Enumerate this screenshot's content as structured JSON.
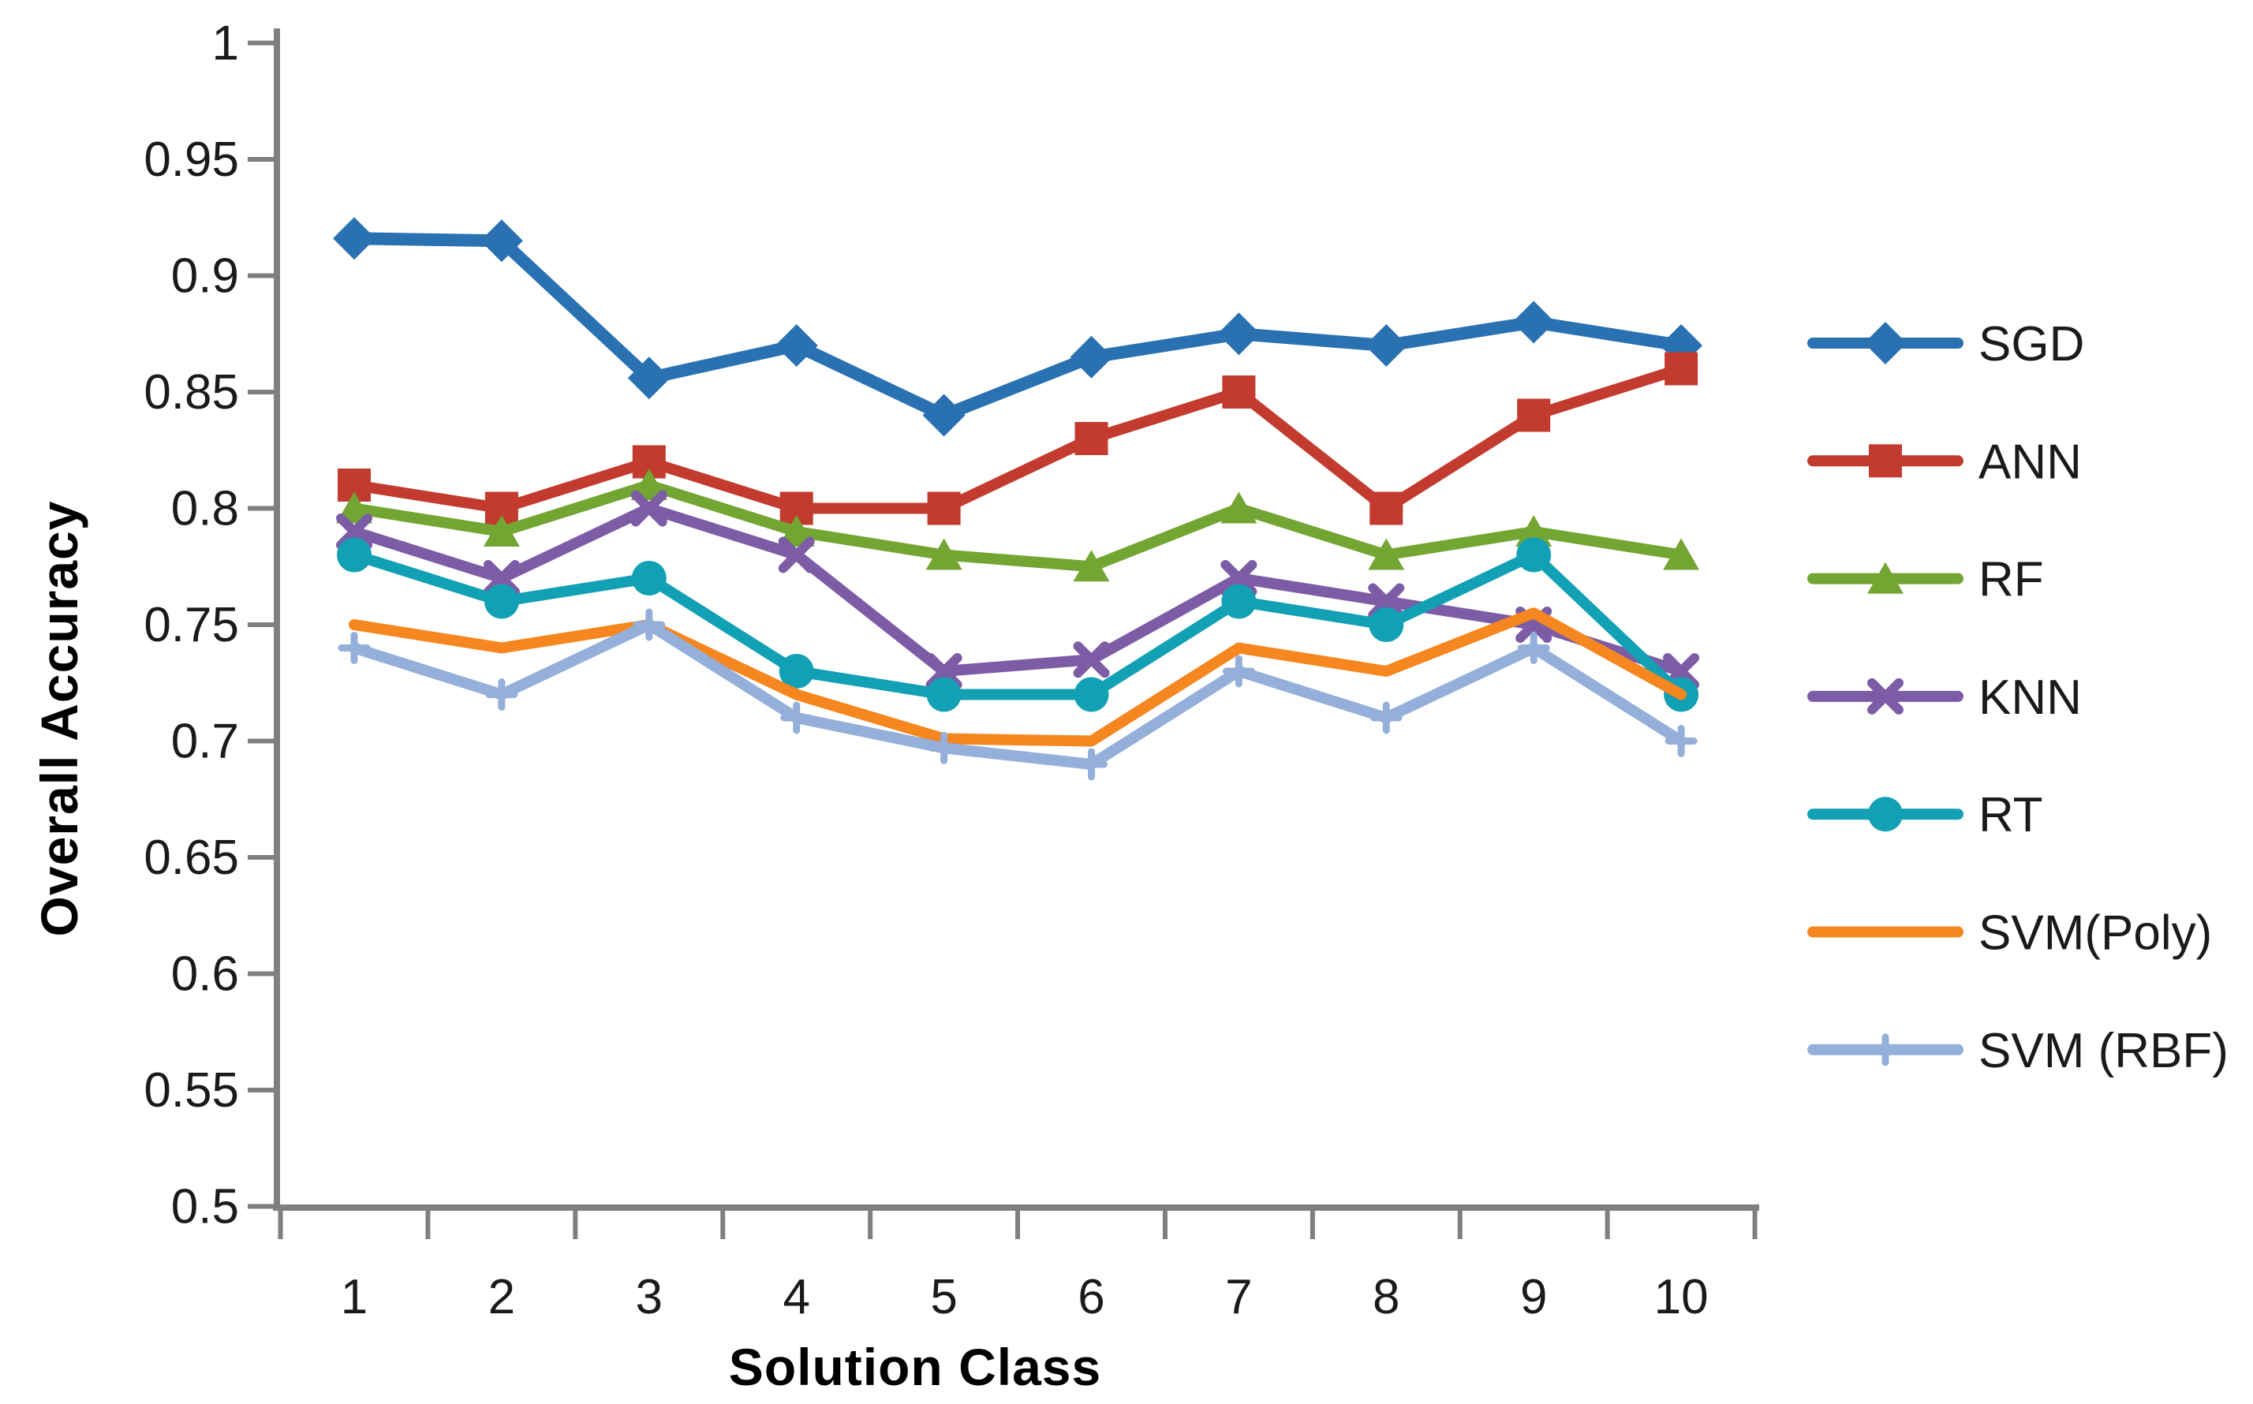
{
  "chart_data": {
    "type": "line",
    "title": "",
    "xlabel": "Solution Class",
    "ylabel": "Overall Accuracy",
    "categories": [
      "1",
      "2",
      "3",
      "4",
      "5",
      "6",
      "7",
      "8",
      "9",
      "10"
    ],
    "ylim": [
      0.5,
      1.0
    ],
    "ytick_labels": [
      "1",
      "0.95",
      "0.9",
      "0.85",
      "0.8",
      "0.75",
      "0.7",
      "0.65",
      "0.6",
      "0.55",
      "0.5"
    ],
    "grid": false,
    "legend_position": "right",
    "axis_color": "#7F7F7F",
    "tick_label_color": "#1A1A1A",
    "title_color": "#000000",
    "series": [
      {
        "name": "SGD",
        "color": "#2A71B2",
        "marker": "diamond",
        "values": [
          0.916,
          0.915,
          0.856,
          0.87,
          0.84,
          0.865,
          0.875,
          0.87,
          0.88,
          0.87
        ]
      },
      {
        "name": "ANN",
        "color": "#C23B2E",
        "marker": "square",
        "values": [
          0.81,
          0.8,
          0.82,
          0.8,
          0.8,
          0.83,
          0.85,
          0.8,
          0.84,
          0.86
        ]
      },
      {
        "name": "RF",
        "color": "#73A533",
        "marker": "triangle",
        "values": [
          0.8,
          0.79,
          0.81,
          0.79,
          0.78,
          0.775,
          0.8,
          0.78,
          0.79,
          0.78
        ]
      },
      {
        "name": "KNN",
        "color": "#7D5CA6",
        "marker": "x",
        "values": [
          0.79,
          0.77,
          0.8,
          0.78,
          0.73,
          0.735,
          0.77,
          0.76,
          0.75,
          0.73
        ]
      },
      {
        "name": "RT",
        "color": "#12A0B5",
        "marker": "circle",
        "values": [
          0.78,
          0.76,
          0.77,
          0.73,
          0.72,
          0.72,
          0.76,
          0.75,
          0.78,
          0.72
        ]
      },
      {
        "name": "SVM(Poly)",
        "color": "#F6861F",
        "marker": "none",
        "values": [
          0.75,
          0.74,
          0.75,
          0.72,
          0.701,
          0.7,
          0.74,
          0.73,
          0.755,
          0.72
        ]
      },
      {
        "name": "SVM (RBF)",
        "color": "#94AFD9",
        "marker": "plus",
        "values": [
          0.74,
          0.72,
          0.75,
          0.71,
          0.697,
          0.69,
          0.73,
          0.71,
          0.74,
          0.7
        ]
      }
    ]
  }
}
